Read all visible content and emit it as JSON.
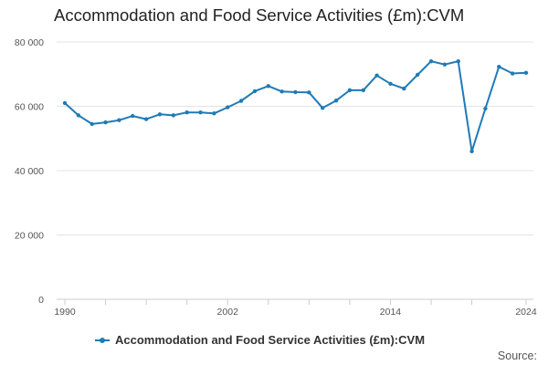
{
  "chart_data": {
    "type": "line",
    "title": "Accommodation and Food Service Activities (£m):CVM",
    "xlabel": "",
    "ylabel": "",
    "xlim": [
      1990,
      2024
    ],
    "ylim": [
      0,
      80000
    ],
    "y_ticks": [
      {
        "value": 0,
        "label": "0"
      },
      {
        "value": 20000,
        "label": "20 000"
      },
      {
        "value": 40000,
        "label": "40 000"
      },
      {
        "value": 60000,
        "label": "60 000"
      },
      {
        "value": 80000,
        "label": "80 000"
      }
    ],
    "x_tick_marks": [
      1990,
      1993,
      1996,
      1999,
      2002,
      2005,
      2008,
      2011,
      2014,
      2017,
      2020,
      2024
    ],
    "x_tick_labels": [
      {
        "value": 1990,
        "label": "1990"
      },
      {
        "value": 2002,
        "label": "2002"
      },
      {
        "value": 2014,
        "label": "2014"
      },
      {
        "value": 2024,
        "label": "2024"
      }
    ],
    "grid": {
      "horizontal": true,
      "vertical": false
    },
    "legend_position": "bottom",
    "series": [
      {
        "name": "Accommodation and Food Service Activities (£m):CVM",
        "color": "#1f7bb6",
        "x": [
          1990,
          1991,
          1992,
          1993,
          1994,
          1995,
          1996,
          1997,
          1998,
          1999,
          2000,
          2001,
          2002,
          2003,
          2004,
          2005,
          2006,
          2007,
          2008,
          2009,
          2010,
          2011,
          2012,
          2013,
          2014,
          2015,
          2016,
          2017,
          2018,
          2019,
          2020,
          2021,
          2022,
          2023,
          2024
        ],
        "values": [
          61000,
          57200,
          54500,
          55000,
          55700,
          57000,
          56000,
          57500,
          57200,
          58100,
          58100,
          57800,
          59700,
          61700,
          64700,
          66300,
          64600,
          64400,
          64300,
          59500,
          61800,
          65000,
          65000,
          69600,
          67000,
          65500,
          69800,
          74000,
          73000,
          74000,
          46000,
          59300,
          72300,
          70200,
          70400
        ]
      }
    ],
    "source_label": "Source:"
  }
}
